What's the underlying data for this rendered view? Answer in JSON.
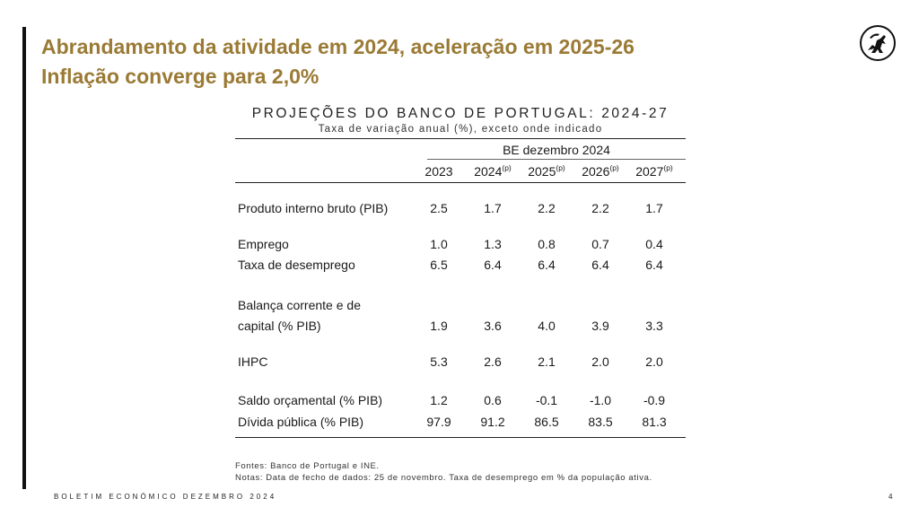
{
  "slide": {
    "title_line1": "Abrandamento da atividade em 2024, aceleração em 2025-26",
    "title_line2": "Inflação converge para 2,0%",
    "accent_color": "#9a7a35",
    "logo_icon": "banco-de-portugal-logo"
  },
  "table": {
    "title": "PROJEÇÕES DO BANCO DE PORTUGAL: 2024-27",
    "subtitle": "Taxa de variação anual (%), exceto onde indicado",
    "group_header": "BE dezembro 2024",
    "years": [
      {
        "year": "2023",
        "sup": ""
      },
      {
        "year": "2024",
        "sup": "(p)"
      },
      {
        "year": "2025",
        "sup": "(p)"
      },
      {
        "year": "2026",
        "sup": "(p)"
      },
      {
        "year": "2027",
        "sup": "(p)"
      }
    ],
    "rows": [
      {
        "label": "Produto interno bruto (PIB)",
        "values": [
          "2.5",
          "1.7",
          "2.2",
          "2.2",
          "1.7"
        ]
      },
      {
        "label": "Emprego",
        "values": [
          "1.0",
          "1.3",
          "0.8",
          "0.7",
          "0.4"
        ]
      },
      {
        "label": "Taxa de desemprego",
        "values": [
          "6.5",
          "6.4",
          "6.4",
          "6.4",
          "6.4"
        ]
      },
      {
        "label": "Balança corrente e de",
        "values": [
          "",
          "",
          "",
          "",
          ""
        ]
      },
      {
        "label": "capital (% PIB)",
        "values": [
          "1.9",
          "3.6",
          "4.0",
          "3.9",
          "3.3"
        ]
      },
      {
        "label": "IHPC",
        "values": [
          "5.3",
          "2.6",
          "2.1",
          "2.0",
          "2.0"
        ]
      },
      {
        "label": "Saldo orçamental (% PIB)",
        "values": [
          "1.2",
          "0.6",
          "-0.1",
          "-1.0",
          "-0.9"
        ]
      },
      {
        "label": "Dívida pública (% PIB)",
        "values": [
          "97.9",
          "91.2",
          "86.5",
          "83.5",
          "81.3"
        ]
      }
    ]
  },
  "notes": {
    "sources": "Fontes: Banco de Portugal e INE.",
    "notes": "Notas: Data de fecho de dados: 25 de novembro. Taxa de desemprego em % da população ativa."
  },
  "footer": {
    "left": "BOLETIM ECONÓMICO DEZEMBRO 2024",
    "page": "4"
  }
}
